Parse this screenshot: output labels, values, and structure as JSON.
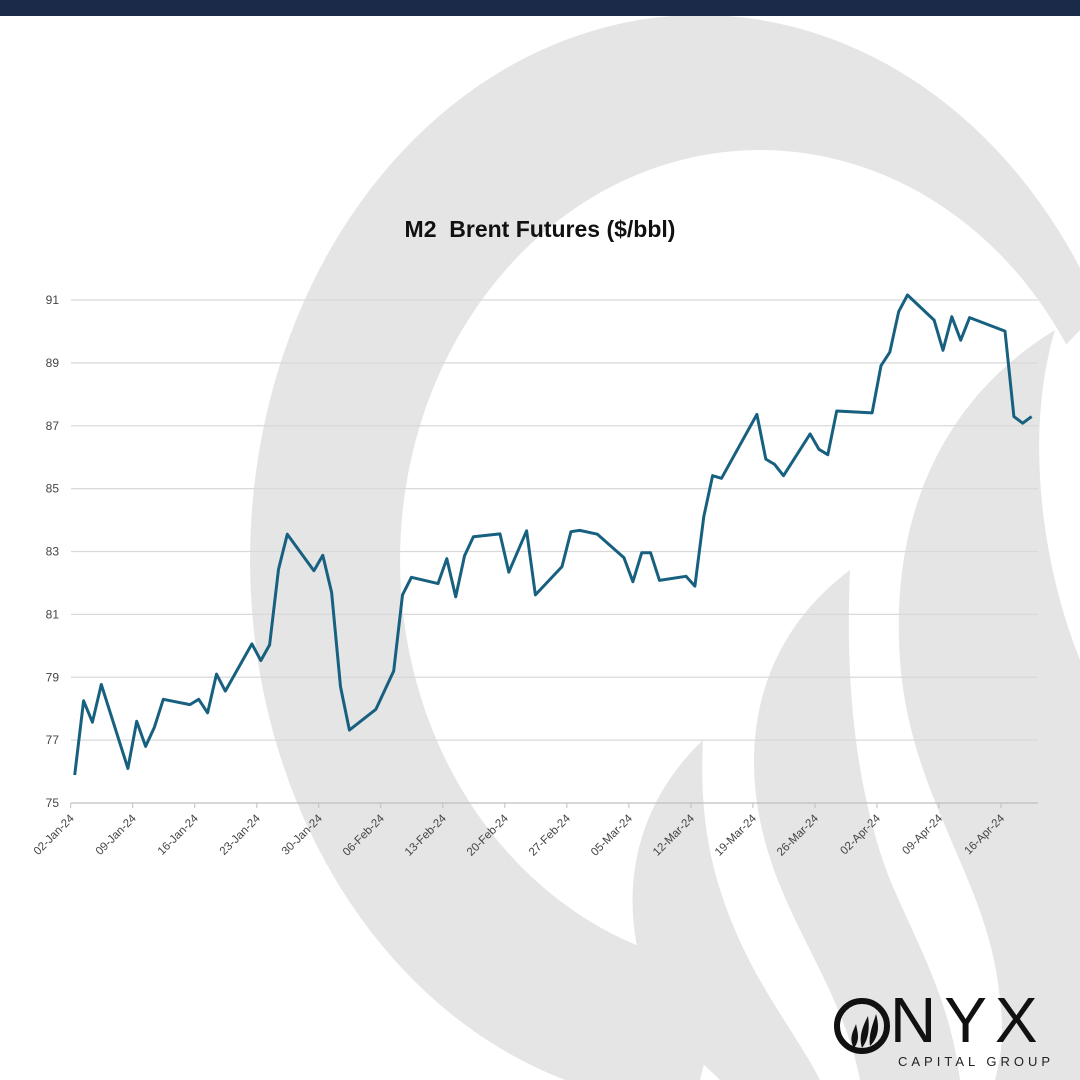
{
  "brand": {
    "top_bar_color": "#1c2a4a",
    "logo_text": "ONYX",
    "logo_subtext": "CAPITAL GROUP",
    "watermark_color": "#e5e5e5"
  },
  "chart_data": {
    "type": "line",
    "title": "M2  Brent Futures ($/bbl)",
    "xlabel": "",
    "ylabel": "",
    "ylim": [
      75,
      91
    ],
    "yticks": [
      75,
      77,
      79,
      81,
      83,
      85,
      87,
      89,
      91
    ],
    "grid": "horizontal",
    "legend": "none",
    "line_color": "#17607f",
    "xtick_labels": [
      "02-Jan-24",
      "09-Jan-24",
      "16-Jan-24",
      "23-Jan-24",
      "30-Jan-24",
      "06-Feb-24",
      "13-Feb-24",
      "20-Feb-24",
      "27-Feb-24",
      "05-Mar-24",
      "12-Mar-24",
      "19-Mar-24",
      "26-Mar-24",
      "02-Apr-24",
      "09-Apr-24",
      "16-Apr-24"
    ],
    "series": [
      {
        "x": [
          "2024-01-02",
          "2024-01-03",
          "2024-01-04",
          "2024-01-05",
          "2024-01-08",
          "2024-01-09",
          "2024-01-10",
          "2024-01-11",
          "2024-01-12",
          "2024-01-15",
          "2024-01-16",
          "2024-01-17",
          "2024-01-18",
          "2024-01-19",
          "2024-01-22",
          "2024-01-23",
          "2024-01-24",
          "2024-01-25",
          "2024-01-26",
          "2024-01-29",
          "2024-01-30",
          "2024-01-31",
          "2024-02-01",
          "2024-02-02",
          "2024-02-05",
          "2024-02-07",
          "2024-02-08",
          "2024-02-09",
          "2024-02-12",
          "2024-02-13",
          "2024-02-14",
          "2024-02-15",
          "2024-02-16",
          "2024-02-19",
          "2024-02-20",
          "2024-02-22",
          "2024-02-23",
          "2024-02-26",
          "2024-02-27",
          "2024-02-28",
          "2024-03-01",
          "2024-03-04",
          "2024-03-05",
          "2024-03-06",
          "2024-03-07",
          "2024-03-08",
          "2024-03-11",
          "2024-03-12",
          "2024-03-13",
          "2024-03-14",
          "2024-03-15",
          "2024-03-19",
          "2024-03-20",
          "2024-03-21",
          "2024-03-22",
          "2024-03-25",
          "2024-03-26",
          "2024-03-27",
          "2024-03-28",
          "2024-04-01",
          "2024-04-02",
          "2024-04-03",
          "2024-04-04",
          "2024-04-05",
          "2024-04-08",
          "2024-04-09",
          "2024-04-10",
          "2024-04-11",
          "2024-04-12",
          "2024-04-16",
          "2024-04-17",
          "2024-04-18",
          "2024-04-19"
        ],
        "values": [
          75.89,
          78.25,
          77.57,
          78.77,
          76.1,
          77.6,
          76.8,
          77.41,
          78.3,
          78.13,
          78.3,
          77.87,
          79.1,
          78.56,
          80.06,
          79.53,
          80.03,
          82.43,
          83.55,
          82.39,
          82.88,
          81.7,
          78.7,
          77.32,
          77.98,
          79.2,
          81.62,
          82.18,
          81.98,
          82.77,
          81.56,
          82.86,
          83.47,
          83.56,
          82.34,
          83.66,
          81.62,
          82.52,
          83.63,
          83.67,
          83.55,
          82.8,
          82.04,
          82.96,
          82.96,
          82.08,
          82.21,
          81.9,
          84.11,
          85.41,
          85.33,
          87.36,
          85.94,
          85.77,
          85.41,
          86.74,
          86.25,
          86.08,
          87.47,
          87.41,
          88.91,
          89.34,
          90.63,
          91.16,
          90.36,
          89.4,
          90.47,
          89.72,
          90.44,
          90.01,
          87.29,
          87.08,
          87.29
        ]
      }
    ]
  }
}
